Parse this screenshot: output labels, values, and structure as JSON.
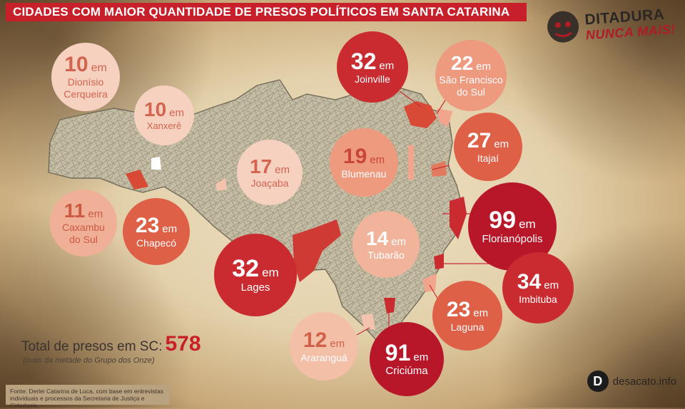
{
  "title": "CIDADES COM MAIOR QUANTIDADE DE PRESOS POLÍTICOS EM SANTA CATARINA",
  "logo": {
    "line1": "DITADURA",
    "line2": "NUNCA MAIS!"
  },
  "connector": "em",
  "cities": [
    {
      "id": "dionisio-cerqueira",
      "count": "10",
      "name_lines": [
        "Dionísio",
        "Cerqueira"
      ]
    },
    {
      "id": "xanxere",
      "count": "10",
      "name_lines": [
        "Xanxerê"
      ]
    },
    {
      "id": "joacaba",
      "count": "17",
      "name_lines": [
        "Joaçaba"
      ]
    },
    {
      "id": "caxambu-do-sul",
      "count": "11",
      "name_lines": [
        "Caxambu",
        "do Sul"
      ]
    },
    {
      "id": "chapeco",
      "count": "23",
      "name_lines": [
        "Chapecó"
      ]
    },
    {
      "id": "lages",
      "count": "32",
      "name_lines": [
        "Lages"
      ]
    },
    {
      "id": "joinville",
      "count": "32",
      "name_lines": [
        "Joinville"
      ]
    },
    {
      "id": "sao-francisco-do-sul",
      "count": "22",
      "name_lines": [
        "São Francisco",
        "do Sul"
      ]
    },
    {
      "id": "blumenau",
      "count": "19",
      "name_lines": [
        "Blumenau"
      ]
    },
    {
      "id": "itajai",
      "count": "27",
      "name_lines": [
        "Itajaí"
      ]
    },
    {
      "id": "florianopolis",
      "count": "99",
      "name_lines": [
        "Florianópolis"
      ]
    },
    {
      "id": "tubarao",
      "count": "14",
      "name_lines": [
        "Tubarão"
      ]
    },
    {
      "id": "imbituba",
      "count": "34",
      "name_lines": [
        "Imbituba"
      ]
    },
    {
      "id": "laguna",
      "count": "23",
      "name_lines": [
        "Laguna"
      ]
    },
    {
      "id": "ararangua",
      "count": "12",
      "name_lines": [
        "Araranguá"
      ]
    },
    {
      "id": "criciuma",
      "count": "91",
      "name_lines": [
        "Criciúma"
      ]
    }
  ],
  "total": {
    "label": "Total de presos em SC:",
    "value": "578",
    "note": "(mais da metade do Grupo dos Onze)"
  },
  "source": "Fonte: Derlei Catarina de Luca, com base em entrevistas individuais e processos da Secretaria de Justiça e Cidadania.",
  "brand": {
    "mark": "D",
    "text": "desacato.info"
  },
  "colors": {
    "title_bar": "#c8202a",
    "highlight": "#d94a36",
    "map_fill": "#c0b89f"
  }
}
